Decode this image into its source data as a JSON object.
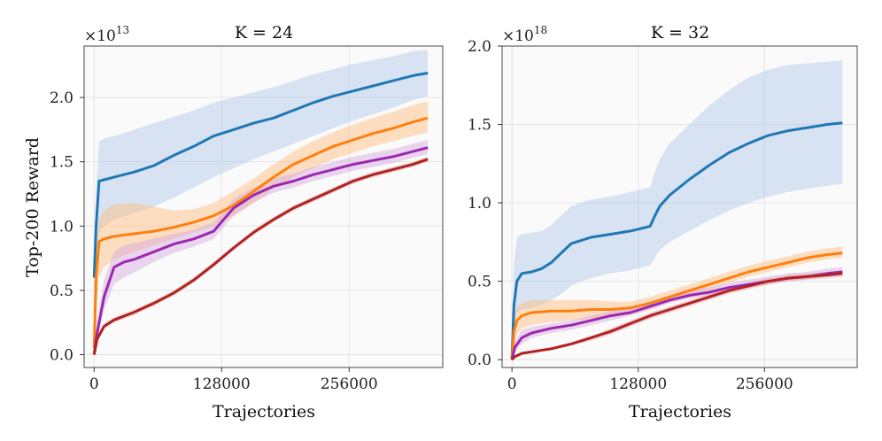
{
  "chart_data": [
    {
      "type": "line",
      "title": "K = 24",
      "xlabel": "Trajectories",
      "ylabel": "Top-200 Reward",
      "y_multiplier": {
        "base": "×10",
        "exp": "13"
      },
      "xticks": [
        0,
        128000,
        256000
      ],
      "xtick_labels": [
        "0",
        "128000",
        "256000"
      ],
      "yticks": [
        0,
        0.5,
        1.0,
        1.5,
        2.0
      ],
      "ytick_labels": [
        "0.0",
        "0.5",
        "1.0",
        "1.5",
        "2.0"
      ],
      "xlim": [
        -10000,
        350000
      ],
      "ylim": [
        -0.1,
        2.4
      ],
      "grid": true,
      "series": [
        {
          "color": "#1f77b4",
          "band_color": "#aec7e8",
          "x": [
            0,
            2000,
            5000,
            10000,
            20000,
            40000,
            60000,
            80000,
            100000,
            120000,
            140000,
            160000,
            180000,
            200000,
            220000,
            240000,
            260000,
            280000,
            300000,
            320000,
            335000
          ],
          "y": [
            0.6,
            1.0,
            1.35,
            1.36,
            1.38,
            1.42,
            1.47,
            1.55,
            1.62,
            1.7,
            1.75,
            1.8,
            1.84,
            1.9,
            1.96,
            2.01,
            2.05,
            2.09,
            2.13,
            2.17,
            2.19
          ],
          "lower": [
            0.4,
            0.7,
            0.95,
            1.0,
            1.05,
            1.1,
            1.15,
            1.22,
            1.3,
            1.38,
            1.45,
            1.52,
            1.58,
            1.64,
            1.7,
            1.76,
            1.82,
            1.87,
            1.92,
            1.98,
            2.01
          ],
          "upper": [
            0.8,
            1.3,
            1.66,
            1.68,
            1.7,
            1.75,
            1.8,
            1.85,
            1.9,
            1.96,
            2.0,
            2.04,
            2.08,
            2.13,
            2.18,
            2.22,
            2.26,
            2.29,
            2.32,
            2.36,
            2.37
          ]
        },
        {
          "color": "#ff7f0e",
          "band_color": "#ffbb78",
          "x": [
            0,
            2000,
            5000,
            10000,
            20000,
            40000,
            60000,
            80000,
            100000,
            120000,
            140000,
            160000,
            180000,
            200000,
            220000,
            240000,
            260000,
            280000,
            300000,
            320000,
            335000
          ],
          "y": [
            0.05,
            0.6,
            0.88,
            0.9,
            0.92,
            0.94,
            0.96,
            0.99,
            1.03,
            1.08,
            1.16,
            1.27,
            1.38,
            1.48,
            1.55,
            1.62,
            1.67,
            1.72,
            1.76,
            1.81,
            1.84
          ],
          "lower": [
            0.0,
            0.35,
            0.6,
            0.68,
            0.74,
            0.8,
            0.85,
            0.9,
            0.95,
            1.0,
            1.08,
            1.18,
            1.29,
            1.38,
            1.45,
            1.52,
            1.57,
            1.62,
            1.66,
            1.7,
            1.73
          ],
          "upper": [
            0.1,
            0.9,
            1.05,
            1.12,
            1.17,
            1.18,
            1.15,
            1.12,
            1.13,
            1.18,
            1.27,
            1.37,
            1.48,
            1.58,
            1.66,
            1.73,
            1.79,
            1.84,
            1.89,
            1.94,
            1.97
          ]
        },
        {
          "color": "#9c27b0",
          "band_color": "#d4a6de",
          "x": [
            0,
            2000,
            5000,
            10000,
            20000,
            30000,
            40000,
            60000,
            80000,
            100000,
            120000,
            130000,
            140000,
            160000,
            180000,
            200000,
            220000,
            240000,
            260000,
            280000,
            300000,
            320000,
            335000
          ],
          "y": [
            0.0,
            0.12,
            0.25,
            0.45,
            0.68,
            0.72,
            0.74,
            0.8,
            0.86,
            0.9,
            0.96,
            1.05,
            1.14,
            1.24,
            1.31,
            1.35,
            1.4,
            1.44,
            1.48,
            1.51,
            1.54,
            1.58,
            1.61
          ],
          "lower": [
            0.0,
            0.08,
            0.18,
            0.35,
            0.55,
            0.6,
            0.64,
            0.72,
            0.79,
            0.84,
            0.9,
            0.99,
            1.08,
            1.18,
            1.26,
            1.3,
            1.35,
            1.39,
            1.43,
            1.46,
            1.49,
            1.53,
            1.56
          ],
          "upper": [
            0.0,
            0.2,
            0.35,
            0.58,
            0.8,
            0.85,
            0.87,
            0.9,
            0.94,
            0.97,
            1.03,
            1.12,
            1.21,
            1.3,
            1.37,
            1.41,
            1.46,
            1.5,
            1.54,
            1.57,
            1.6,
            1.64,
            1.67
          ]
        },
        {
          "color": "#b22222",
          "band_color": "#e0a0a0",
          "x": [
            0,
            3000,
            10000,
            20000,
            40000,
            60000,
            80000,
            100000,
            120000,
            140000,
            160000,
            180000,
            200000,
            220000,
            240000,
            260000,
            280000,
            300000,
            320000,
            335000
          ],
          "y": [
            0.0,
            0.12,
            0.22,
            0.27,
            0.33,
            0.4,
            0.48,
            0.58,
            0.7,
            0.83,
            0.95,
            1.05,
            1.14,
            1.21,
            1.28,
            1.35,
            1.4,
            1.44,
            1.48,
            1.52
          ],
          "lower": [
            0.0,
            0.1,
            0.2,
            0.25,
            0.31,
            0.38,
            0.46,
            0.56,
            0.68,
            0.81,
            0.93,
            1.03,
            1.12,
            1.19,
            1.26,
            1.33,
            1.38,
            1.42,
            1.46,
            1.5
          ],
          "upper": [
            0.0,
            0.14,
            0.24,
            0.29,
            0.35,
            0.42,
            0.5,
            0.6,
            0.72,
            0.85,
            0.97,
            1.07,
            1.16,
            1.23,
            1.3,
            1.37,
            1.42,
            1.46,
            1.5,
            1.54
          ]
        }
      ]
    },
    {
      "type": "line",
      "title": "K = 32",
      "xlabel": "Trajectories",
      "ylabel": "",
      "y_multiplier": {
        "base": "×10",
        "exp": "18"
      },
      "xticks": [
        0,
        128000,
        256000
      ],
      "xtick_labels": [
        "0",
        "128000",
        "256000"
      ],
      "yticks": [
        0,
        0.5,
        1.0,
        1.5,
        2.0
      ],
      "ytick_labels": [
        "0.0",
        "0.5",
        "1.0",
        "1.5",
        "2.0"
      ],
      "xlim": [
        -10000,
        350000
      ],
      "ylim": [
        -0.05,
        2.0
      ],
      "grid": true,
      "series": [
        {
          "color": "#1f77b4",
          "band_color": "#aec7e8",
          "x": [
            0,
            2000,
            5000,
            10000,
            20000,
            30000,
            40000,
            50000,
            60000,
            70000,
            80000,
            100000,
            120000,
            140000,
            145000,
            150000,
            160000,
            180000,
            200000,
            220000,
            240000,
            260000,
            280000,
            300000,
            320000,
            335000
          ],
          "y": [
            0.0,
            0.35,
            0.5,
            0.55,
            0.56,
            0.58,
            0.62,
            0.68,
            0.74,
            0.76,
            0.78,
            0.8,
            0.82,
            0.85,
            0.92,
            0.98,
            1.05,
            1.15,
            1.24,
            1.32,
            1.38,
            1.43,
            1.46,
            1.48,
            1.5,
            1.51
          ],
          "lower": [
            0.0,
            0.2,
            0.3,
            0.32,
            0.33,
            0.35,
            0.38,
            0.42,
            0.47,
            0.5,
            0.52,
            0.55,
            0.57,
            0.6,
            0.65,
            0.7,
            0.75,
            0.82,
            0.89,
            0.95,
            1.0,
            1.04,
            1.07,
            1.09,
            1.11,
            1.12
          ],
          "upper": [
            0.0,
            0.6,
            0.78,
            0.8,
            0.81,
            0.82,
            0.86,
            0.92,
            0.98,
            1.0,
            1.02,
            1.04,
            1.07,
            1.1,
            1.2,
            1.28,
            1.38,
            1.5,
            1.62,
            1.72,
            1.8,
            1.85,
            1.88,
            1.89,
            1.9,
            1.91
          ]
        },
        {
          "color": "#ff7f0e",
          "band_color": "#ffbb78",
          "x": [
            0,
            2000,
            5000,
            10000,
            20000,
            40000,
            60000,
            80000,
            100000,
            120000,
            140000,
            160000,
            180000,
            200000,
            220000,
            240000,
            260000,
            280000,
            300000,
            320000,
            335000
          ],
          "y": [
            0.0,
            0.18,
            0.25,
            0.28,
            0.3,
            0.31,
            0.31,
            0.32,
            0.32,
            0.33,
            0.36,
            0.4,
            0.44,
            0.48,
            0.52,
            0.56,
            0.59,
            0.62,
            0.65,
            0.67,
            0.68
          ],
          "lower": [
            0.0,
            0.1,
            0.16,
            0.2,
            0.22,
            0.24,
            0.25,
            0.26,
            0.27,
            0.29,
            0.32,
            0.37,
            0.41,
            0.45,
            0.49,
            0.53,
            0.56,
            0.59,
            0.62,
            0.64,
            0.65
          ],
          "upper": [
            0.0,
            0.26,
            0.34,
            0.36,
            0.38,
            0.38,
            0.38,
            0.38,
            0.37,
            0.37,
            0.4,
            0.44,
            0.48,
            0.52,
            0.56,
            0.6,
            0.63,
            0.66,
            0.69,
            0.71,
            0.72
          ]
        },
        {
          "color": "#9c27b0",
          "band_color": "#d4a6de",
          "x": [
            0,
            3000,
            10000,
            20000,
            40000,
            60000,
            80000,
            100000,
            120000,
            140000,
            160000,
            180000,
            200000,
            220000,
            240000,
            260000,
            280000,
            300000,
            320000,
            335000
          ],
          "y": [
            0.0,
            0.08,
            0.14,
            0.17,
            0.2,
            0.22,
            0.25,
            0.28,
            0.3,
            0.34,
            0.38,
            0.41,
            0.43,
            0.46,
            0.48,
            0.5,
            0.52,
            0.53,
            0.55,
            0.56
          ],
          "lower": [
            0.0,
            0.05,
            0.1,
            0.14,
            0.17,
            0.19,
            0.22,
            0.25,
            0.28,
            0.32,
            0.36,
            0.39,
            0.41,
            0.44,
            0.46,
            0.48,
            0.5,
            0.51,
            0.53,
            0.54
          ],
          "upper": [
            0.0,
            0.12,
            0.19,
            0.21,
            0.23,
            0.25,
            0.28,
            0.31,
            0.33,
            0.37,
            0.41,
            0.44,
            0.46,
            0.49,
            0.51,
            0.53,
            0.55,
            0.56,
            0.58,
            0.59
          ]
        },
        {
          "color": "#b22222",
          "band_color": "#e0a0a0",
          "x": [
            0,
            3000,
            10000,
            20000,
            40000,
            60000,
            80000,
            100000,
            120000,
            140000,
            160000,
            180000,
            200000,
            220000,
            240000,
            260000,
            280000,
            300000,
            320000,
            335000
          ],
          "y": [
            0.0,
            0.02,
            0.04,
            0.05,
            0.07,
            0.1,
            0.14,
            0.18,
            0.23,
            0.28,
            0.32,
            0.36,
            0.4,
            0.44,
            0.47,
            0.5,
            0.52,
            0.53,
            0.54,
            0.55
          ],
          "lower": [
            0.0,
            0.01,
            0.03,
            0.04,
            0.06,
            0.09,
            0.12,
            0.16,
            0.21,
            0.26,
            0.3,
            0.34,
            0.38,
            0.42,
            0.45,
            0.48,
            0.5,
            0.51,
            0.52,
            0.53
          ],
          "upper": [
            0.0,
            0.03,
            0.05,
            0.06,
            0.08,
            0.11,
            0.15,
            0.2,
            0.25,
            0.3,
            0.34,
            0.38,
            0.42,
            0.46,
            0.49,
            0.52,
            0.54,
            0.55,
            0.56,
            0.57
          ]
        }
      ]
    }
  ]
}
